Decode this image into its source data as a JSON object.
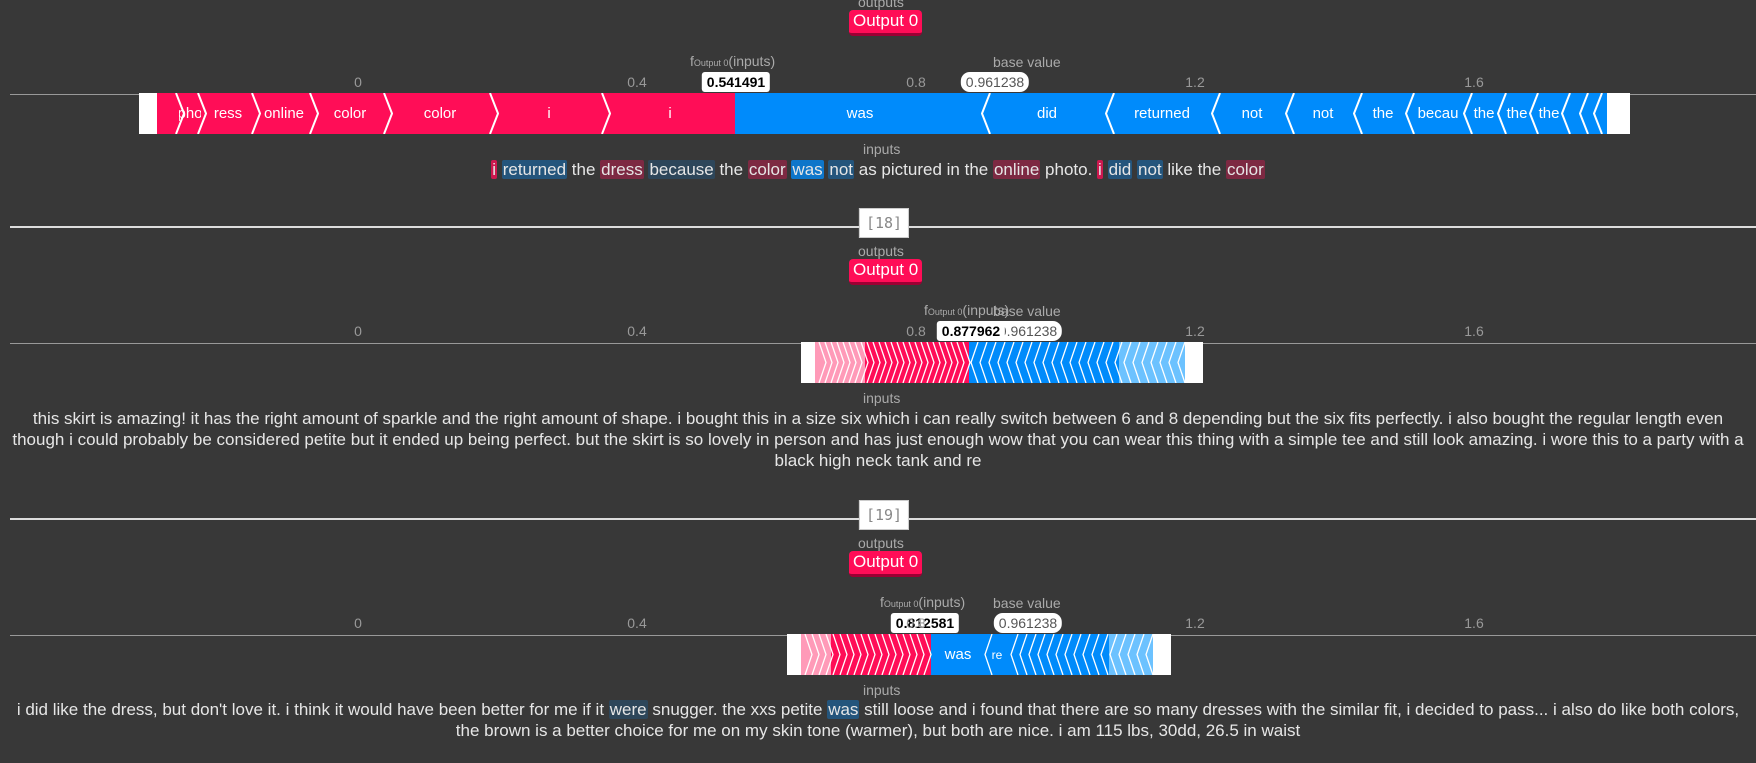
{
  "labels": {
    "outputs": "outputs",
    "inputs": "inputs",
    "output_button": "Output 0",
    "base_value": "base value",
    "fx": "f",
    "fx_sub": "Output 0",
    "fx_inputs": "(inputs)"
  },
  "axis": {
    "ticks": [
      "0",
      "0.4",
      "0.8",
      "1.2",
      "1.6"
    ]
  },
  "colors": {
    "positive": "#ff0d57",
    "negative": "#008bfb",
    "background": "#383838"
  },
  "plots": [
    {
      "fx_value": "0.541491",
      "base_value": "0.961238",
      "pos_segments": [
        "",
        "pho",
        "ress",
        "online",
        "color",
        "color",
        "i",
        "i"
      ],
      "neg_segments": [
        "was",
        "did",
        "returned",
        "not",
        "not",
        "the",
        "becau",
        "the",
        "the",
        "the"
      ],
      "text_tokens": [
        {
          "t": "i",
          "s": "pos2"
        },
        {
          "t": " ",
          "s": ""
        },
        {
          "t": "returned",
          "s": "neg1"
        },
        {
          "t": " the ",
          "s": ""
        },
        {
          "t": "dress",
          "s": "pos1"
        },
        {
          "t": " ",
          "s": ""
        },
        {
          "t": "because",
          "s": "neg0"
        },
        {
          "t": " the ",
          "s": ""
        },
        {
          "t": "color",
          "s": "pos1"
        },
        {
          "t": " ",
          "s": ""
        },
        {
          "t": "was",
          "s": "neg2"
        },
        {
          "t": " ",
          "s": ""
        },
        {
          "t": "not",
          "s": "neg1"
        },
        {
          "t": " as pictured in the ",
          "s": ""
        },
        {
          "t": "online",
          "s": "pos1"
        },
        {
          "t": " photo. ",
          "s": ""
        },
        {
          "t": "i",
          "s": "pos2"
        },
        {
          "t": " ",
          "s": ""
        },
        {
          "t": "did",
          "s": "neg1"
        },
        {
          "t": " ",
          "s": ""
        },
        {
          "t": "not",
          "s": "neg1"
        },
        {
          "t": " like the ",
          "s": ""
        },
        {
          "t": "color",
          "s": "pos1"
        }
      ]
    },
    {
      "cell_label": "[18]",
      "fx_value": "0.877962",
      "base_value": "0.961238",
      "text": "this skirt is amazing! it has the right amount of sparkle and the right amount of shape. i bought this in a size six which i can really switch between 6 and 8 depending but the six fits perfectly. i also bought the regular length even though i could probably be considered petite but it ended up being perfect. but the skirt is so lovely in person and has just enough wow that you can wear this thing with a simple tee and still look amazing. i wore this to a party with a black high neck tank and re"
    },
    {
      "cell_label": "[19]",
      "fx_value": "0.812581",
      "base_value": "0.961238",
      "neg_segments": [
        "was",
        "re"
      ],
      "text_tokens": [
        {
          "t": "i did like the dress, but don't love it. i think it would have been better for me if it ",
          "s": ""
        },
        {
          "t": "were",
          "s": "neg0"
        },
        {
          "t": " snugger. the xxs petite ",
          "s": ""
        },
        {
          "t": "was",
          "s": "neg1"
        },
        {
          "t": " still loose and i found that there are so many dresses with the similar fit, i decided to pass... i also do like both colors, the brown is a better choice for me on my skin tone (warmer), but both are nice. i am 115 lbs, 30dd, 26.5 in waist",
          "s": ""
        }
      ]
    }
  ]
}
